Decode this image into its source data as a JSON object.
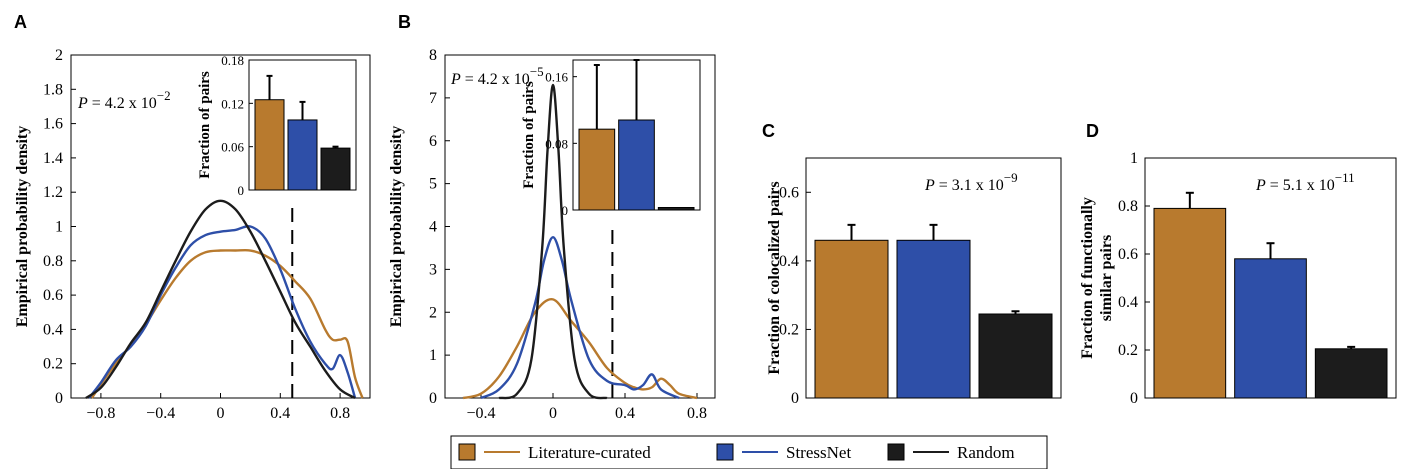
{
  "colors": {
    "literature": "#B87A2E",
    "stressnet": "#2E4FA8",
    "random": "#1C1C1C"
  },
  "legend": {
    "items": [
      {
        "label": "Literature-curated",
        "color": "#B87A2E"
      },
      {
        "label": "StressNet",
        "color": "#2E4FA8"
      },
      {
        "label": "Random",
        "color": "#1C1C1C"
      }
    ]
  },
  "chart_data": [
    {
      "panel": "A",
      "type": "line",
      "ylabel": "Empirical probability density",
      "xlim": [
        -1.0,
        1.0
      ],
      "ylim": [
        0,
        2
      ],
      "xticks": [
        "−0.8",
        "−0.4",
        "0",
        "0.4",
        "0.8"
      ],
      "yticks": [
        "0",
        "0.2",
        "0.4",
        "0.6",
        "0.8",
        "1",
        "1.2",
        "1.4",
        "1.6",
        "1.8",
        "2"
      ],
      "p_value": {
        "prefix": "P",
        "text": " = 4.2 x 10",
        "exp": "−2"
      },
      "threshold_x": 0.48,
      "series": [
        {
          "name": "Literature-curated",
          "x": [
            -0.86,
            -0.8,
            -0.7,
            -0.6,
            -0.5,
            -0.4,
            -0.3,
            -0.2,
            -0.1,
            0,
            0.1,
            0.2,
            0.3,
            0.4,
            0.5,
            0.6,
            0.7,
            0.75,
            0.8,
            0.85,
            0.9,
            0.95
          ],
          "y": [
            0,
            0.08,
            0.2,
            0.31,
            0.43,
            0.57,
            0.7,
            0.8,
            0.85,
            0.86,
            0.86,
            0.86,
            0.83,
            0.77,
            0.68,
            0.58,
            0.4,
            0.34,
            0.34,
            0.33,
            0.12,
            0
          ]
        },
        {
          "name": "StressNet",
          "x": [
            -0.88,
            -0.8,
            -0.7,
            -0.6,
            -0.5,
            -0.4,
            -0.3,
            -0.2,
            -0.1,
            0,
            0.1,
            0.2,
            0.3,
            0.4,
            0.5,
            0.6,
            0.7,
            0.75,
            0.8,
            0.85,
            0.9
          ],
          "y": [
            0,
            0.09,
            0.22,
            0.3,
            0.42,
            0.6,
            0.76,
            0.89,
            0.95,
            0.97,
            0.98,
            1.0,
            0.93,
            0.75,
            0.52,
            0.33,
            0.2,
            0.17,
            0.25,
            0.15,
            0
          ]
        },
        {
          "name": "Random",
          "x": [
            -0.9,
            -0.8,
            -0.7,
            -0.6,
            -0.5,
            -0.4,
            -0.3,
            -0.2,
            -0.1,
            0,
            0.1,
            0.2,
            0.3,
            0.4,
            0.5,
            0.6,
            0.7,
            0.8,
            0.9
          ],
          "y": [
            0,
            0.06,
            0.18,
            0.32,
            0.44,
            0.62,
            0.8,
            0.97,
            1.1,
            1.15,
            1.1,
            0.97,
            0.8,
            0.62,
            0.44,
            0.3,
            0.16,
            0.05,
            0
          ]
        }
      ],
      "inset": {
        "type": "bar",
        "ylabel": "Fraction of pairs",
        "ylim": [
          0,
          0.18
        ],
        "yticks": [
          "0",
          "0.06",
          "0.12",
          "0.18"
        ],
        "values": [
          0.125,
          0.097,
          0.058
        ],
        "errors": [
          0.033,
          0.025,
          0.002
        ]
      }
    },
    {
      "panel": "B",
      "type": "line",
      "ylabel": "Empirical probability density",
      "xlim": [
        -0.6,
        0.9
      ],
      "ylim": [
        0,
        8
      ],
      "xticks": [
        "−0.4",
        "0",
        "0.4",
        "0.8"
      ],
      "yticks": [
        "0",
        "1",
        "2",
        "3",
        "4",
        "5",
        "6",
        "7",
        "8"
      ],
      "p_value": {
        "prefix": "P",
        "text": " = 4.2 x 10",
        "exp": "−5"
      },
      "threshold_x": 0.33,
      "series": [
        {
          "name": "Literature-curated",
          "x": [
            -0.5,
            -0.4,
            -0.3,
            -0.2,
            -0.1,
            0,
            0.1,
            0.2,
            0.3,
            0.4,
            0.45,
            0.5,
            0.55,
            0.6,
            0.65,
            0.7,
            0.8
          ],
          "y": [
            0,
            0.1,
            0.5,
            1.2,
            2.0,
            2.3,
            1.8,
            1.3,
            0.7,
            0.35,
            0.25,
            0.2,
            0.25,
            0.45,
            0.3,
            0.1,
            0
          ]
        },
        {
          "name": "StressNet",
          "x": [
            -0.4,
            -0.3,
            -0.2,
            -0.1,
            -0.05,
            0,
            0.05,
            0.1,
            0.2,
            0.3,
            0.4,
            0.45,
            0.5,
            0.55,
            0.6,
            0.7
          ],
          "y": [
            0,
            0.2,
            0.8,
            2.2,
            3.2,
            3.75,
            3.2,
            2.3,
            0.9,
            0.4,
            0.3,
            0.2,
            0.3,
            0.55,
            0.2,
            0
          ]
        },
        {
          "name": "Random",
          "x": [
            -0.3,
            -0.2,
            -0.12,
            -0.06,
            -0.03,
            0,
            0.03,
            0.06,
            0.12,
            0.2,
            0.3
          ],
          "y": [
            0,
            0.1,
            0.9,
            3.5,
            5.8,
            7.3,
            5.8,
            3.5,
            0.9,
            0.1,
            0
          ]
        }
      ],
      "inset": {
        "type": "bar",
        "ylabel": "Fraction of pairs",
        "ylim": [
          0,
          0.18
        ],
        "yticks": [
          "0",
          "0.08",
          "0.16"
        ],
        "values": [
          0.097,
          0.108
        ],
        "errors": [
          0.077,
          0.072
        ],
        "random_value": 0.003
      }
    },
    {
      "panel": "C",
      "type": "bar",
      "ylabel": "Fraction of colocalized pairs",
      "ylim": [
        0,
        0.7
      ],
      "yticks": [
        "0",
        "0.2",
        "0.4",
        "0.6"
      ],
      "p_value": {
        "prefix": "P",
        "text": " = 3.1 x 10",
        "exp": "−9"
      },
      "values": [
        0.46,
        0.46,
        0.245
      ],
      "errors": [
        0.045,
        0.045,
        0.008
      ]
    },
    {
      "panel": "D",
      "type": "bar",
      "ylabel": "Fraction of functionally similar pairs",
      "ylabel_lines": [
        "Fraction of functionally",
        "similar pairs"
      ],
      "ylim": [
        0,
        1.0
      ],
      "yticks": [
        "0",
        "0.2",
        "0.4",
        "0.6",
        "0.8",
        "1"
      ],
      "p_value": {
        "prefix": "P",
        "text": " = 5.1 x 10",
        "exp": "−11"
      },
      "values": [
        0.79,
        0.58,
        0.205
      ],
      "errors": [
        0.065,
        0.065,
        0.008
      ]
    }
  ]
}
